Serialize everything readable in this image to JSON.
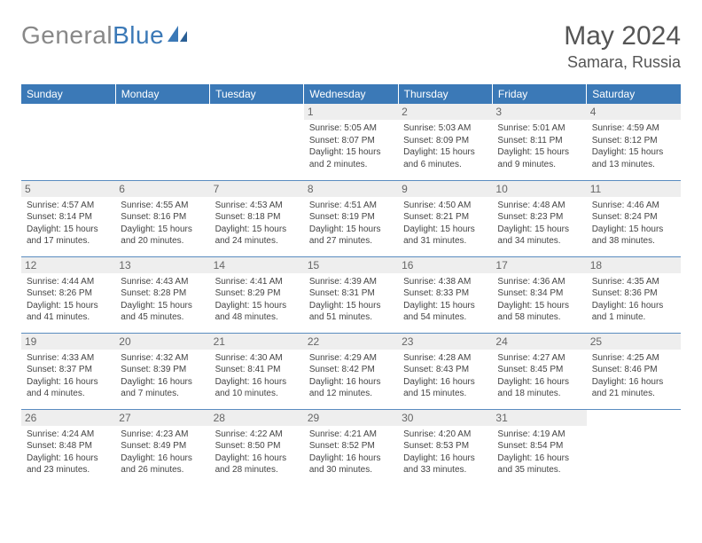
{
  "brand": {
    "part1": "General",
    "part2": "Blue"
  },
  "title": "May 2024",
  "location": "Samara, Russia",
  "colors": {
    "header_bg": "#3b79b7",
    "header_fg": "#ffffff",
    "daynum_bg": "#eeeeee",
    "daynum_fg": "#666666",
    "border": "#5a8cc0",
    "logo_gray": "#888888",
    "logo_blue": "#3b79b7"
  },
  "day_headers": [
    "Sunday",
    "Monday",
    "Tuesday",
    "Wednesday",
    "Thursday",
    "Friday",
    "Saturday"
  ],
  "weeks": [
    [
      {
        "n": "",
        "sr": "",
        "ss": "",
        "dl": ""
      },
      {
        "n": "",
        "sr": "",
        "ss": "",
        "dl": ""
      },
      {
        "n": "",
        "sr": "",
        "ss": "",
        "dl": ""
      },
      {
        "n": "1",
        "sr": "Sunrise: 5:05 AM",
        "ss": "Sunset: 8:07 PM",
        "dl": "Daylight: 15 hours and 2 minutes."
      },
      {
        "n": "2",
        "sr": "Sunrise: 5:03 AM",
        "ss": "Sunset: 8:09 PM",
        "dl": "Daylight: 15 hours and 6 minutes."
      },
      {
        "n": "3",
        "sr": "Sunrise: 5:01 AM",
        "ss": "Sunset: 8:11 PM",
        "dl": "Daylight: 15 hours and 9 minutes."
      },
      {
        "n": "4",
        "sr": "Sunrise: 4:59 AM",
        "ss": "Sunset: 8:12 PM",
        "dl": "Daylight: 15 hours and 13 minutes."
      }
    ],
    [
      {
        "n": "5",
        "sr": "Sunrise: 4:57 AM",
        "ss": "Sunset: 8:14 PM",
        "dl": "Daylight: 15 hours and 17 minutes."
      },
      {
        "n": "6",
        "sr": "Sunrise: 4:55 AM",
        "ss": "Sunset: 8:16 PM",
        "dl": "Daylight: 15 hours and 20 minutes."
      },
      {
        "n": "7",
        "sr": "Sunrise: 4:53 AM",
        "ss": "Sunset: 8:18 PM",
        "dl": "Daylight: 15 hours and 24 minutes."
      },
      {
        "n": "8",
        "sr": "Sunrise: 4:51 AM",
        "ss": "Sunset: 8:19 PM",
        "dl": "Daylight: 15 hours and 27 minutes."
      },
      {
        "n": "9",
        "sr": "Sunrise: 4:50 AM",
        "ss": "Sunset: 8:21 PM",
        "dl": "Daylight: 15 hours and 31 minutes."
      },
      {
        "n": "10",
        "sr": "Sunrise: 4:48 AM",
        "ss": "Sunset: 8:23 PM",
        "dl": "Daylight: 15 hours and 34 minutes."
      },
      {
        "n": "11",
        "sr": "Sunrise: 4:46 AM",
        "ss": "Sunset: 8:24 PM",
        "dl": "Daylight: 15 hours and 38 minutes."
      }
    ],
    [
      {
        "n": "12",
        "sr": "Sunrise: 4:44 AM",
        "ss": "Sunset: 8:26 PM",
        "dl": "Daylight: 15 hours and 41 minutes."
      },
      {
        "n": "13",
        "sr": "Sunrise: 4:43 AM",
        "ss": "Sunset: 8:28 PM",
        "dl": "Daylight: 15 hours and 45 minutes."
      },
      {
        "n": "14",
        "sr": "Sunrise: 4:41 AM",
        "ss": "Sunset: 8:29 PM",
        "dl": "Daylight: 15 hours and 48 minutes."
      },
      {
        "n": "15",
        "sr": "Sunrise: 4:39 AM",
        "ss": "Sunset: 8:31 PM",
        "dl": "Daylight: 15 hours and 51 minutes."
      },
      {
        "n": "16",
        "sr": "Sunrise: 4:38 AM",
        "ss": "Sunset: 8:33 PM",
        "dl": "Daylight: 15 hours and 54 minutes."
      },
      {
        "n": "17",
        "sr": "Sunrise: 4:36 AM",
        "ss": "Sunset: 8:34 PM",
        "dl": "Daylight: 15 hours and 58 minutes."
      },
      {
        "n": "18",
        "sr": "Sunrise: 4:35 AM",
        "ss": "Sunset: 8:36 PM",
        "dl": "Daylight: 16 hours and 1 minute."
      }
    ],
    [
      {
        "n": "19",
        "sr": "Sunrise: 4:33 AM",
        "ss": "Sunset: 8:37 PM",
        "dl": "Daylight: 16 hours and 4 minutes."
      },
      {
        "n": "20",
        "sr": "Sunrise: 4:32 AM",
        "ss": "Sunset: 8:39 PM",
        "dl": "Daylight: 16 hours and 7 minutes."
      },
      {
        "n": "21",
        "sr": "Sunrise: 4:30 AM",
        "ss": "Sunset: 8:41 PM",
        "dl": "Daylight: 16 hours and 10 minutes."
      },
      {
        "n": "22",
        "sr": "Sunrise: 4:29 AM",
        "ss": "Sunset: 8:42 PM",
        "dl": "Daylight: 16 hours and 12 minutes."
      },
      {
        "n": "23",
        "sr": "Sunrise: 4:28 AM",
        "ss": "Sunset: 8:43 PM",
        "dl": "Daylight: 16 hours and 15 minutes."
      },
      {
        "n": "24",
        "sr": "Sunrise: 4:27 AM",
        "ss": "Sunset: 8:45 PM",
        "dl": "Daylight: 16 hours and 18 minutes."
      },
      {
        "n": "25",
        "sr": "Sunrise: 4:25 AM",
        "ss": "Sunset: 8:46 PM",
        "dl": "Daylight: 16 hours and 21 minutes."
      }
    ],
    [
      {
        "n": "26",
        "sr": "Sunrise: 4:24 AM",
        "ss": "Sunset: 8:48 PM",
        "dl": "Daylight: 16 hours and 23 minutes."
      },
      {
        "n": "27",
        "sr": "Sunrise: 4:23 AM",
        "ss": "Sunset: 8:49 PM",
        "dl": "Daylight: 16 hours and 26 minutes."
      },
      {
        "n": "28",
        "sr": "Sunrise: 4:22 AM",
        "ss": "Sunset: 8:50 PM",
        "dl": "Daylight: 16 hours and 28 minutes."
      },
      {
        "n": "29",
        "sr": "Sunrise: 4:21 AM",
        "ss": "Sunset: 8:52 PM",
        "dl": "Daylight: 16 hours and 30 minutes."
      },
      {
        "n": "30",
        "sr": "Sunrise: 4:20 AM",
        "ss": "Sunset: 8:53 PM",
        "dl": "Daylight: 16 hours and 33 minutes."
      },
      {
        "n": "31",
        "sr": "Sunrise: 4:19 AM",
        "ss": "Sunset: 8:54 PM",
        "dl": "Daylight: 16 hours and 35 minutes."
      },
      {
        "n": "",
        "sr": "",
        "ss": "",
        "dl": ""
      }
    ]
  ]
}
